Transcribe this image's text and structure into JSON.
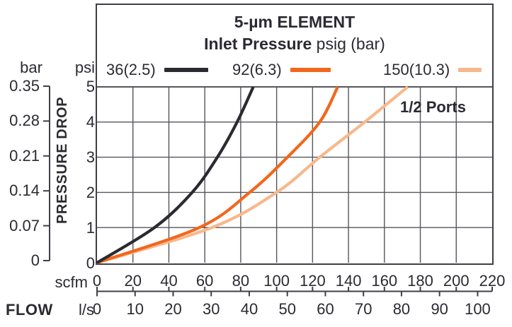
{
  "frame": {
    "title_line1": "5-µm ELEMENT",
    "title_line2_bold": "Inlet Pressure",
    "title_line2_rest": " psig (bar)",
    "ports_label": "1/2 Ports"
  },
  "legend": [
    {
      "label": "36(2.5)",
      "color": "#2b2a31"
    },
    {
      "label": "92(6.3)",
      "color": "#f2671c"
    },
    {
      "label": "150(10.3)",
      "color": "#f8b88c"
    }
  ],
  "left_axis": {
    "bar_header": "bar",
    "psi_header": "psi",
    "axis_label": "PRESSURE DROP",
    "bar_ticks": [
      "0.35",
      "0.28",
      "0.21",
      "0.14",
      "0.07",
      "0"
    ],
    "psi_ticks": [
      "5",
      "4",
      "3",
      "2",
      "1",
      "0"
    ]
  },
  "bottom_axis": {
    "scfm_label": "scfm",
    "flow_label": "FLOW",
    "ls_label": "l/s",
    "scfm_ticks": [
      0,
      20,
      40,
      60,
      80,
      100,
      120,
      140,
      160,
      180,
      200,
      220
    ],
    "ls_ticks": [
      0,
      10,
      20,
      30,
      40,
      50,
      60,
      70,
      80,
      90,
      100
    ]
  },
  "colors": {
    "ink": "#2b2a31",
    "grid": "#55555c",
    "frame": "#403f47"
  },
  "chart_data": {
    "type": "line",
    "title": "5-µm ELEMENT",
    "subtitle": "Inlet Pressure psig (bar)",
    "annotation": "1/2 Ports",
    "xlabel": "FLOW (scfm upper scale, l/s lower scale)",
    "ylabel": "PRESSURE DROP (psi inner scale, bar outer scale)",
    "x_range_scfm": [
      0,
      220
    ],
    "x_range_ls": [
      0,
      100
    ],
    "y_range_psi": [
      0,
      5
    ],
    "y_range_bar": [
      0,
      0.35
    ],
    "grid": true,
    "grid_step_scfm": 20,
    "grid_step_psi": 1,
    "legend_position": "top",
    "series": [
      {
        "name": "36(2.5)",
        "color": "#2b2a31",
        "points_scfm_psi": [
          [
            0,
            0
          ],
          [
            32,
            1
          ],
          [
            53,
            2
          ],
          [
            67,
            3
          ],
          [
            78,
            4
          ],
          [
            87,
            5
          ]
        ]
      },
      {
        "name": "92(6.3)",
        "color": "#f2671c",
        "points_scfm_psi": [
          [
            0,
            0
          ],
          [
            57,
            1
          ],
          [
            85,
            2
          ],
          [
            106,
            3
          ],
          [
            124,
            4
          ],
          [
            134,
            5
          ]
        ]
      },
      {
        "name": "150(10.3)",
        "color": "#f8b88c",
        "points_scfm_psi": [
          [
            0,
            0
          ],
          [
            64,
            1
          ],
          [
            100,
            2
          ],
          [
            124,
            3
          ],
          [
            149,
            4
          ],
          [
            173,
            5
          ]
        ]
      }
    ]
  }
}
